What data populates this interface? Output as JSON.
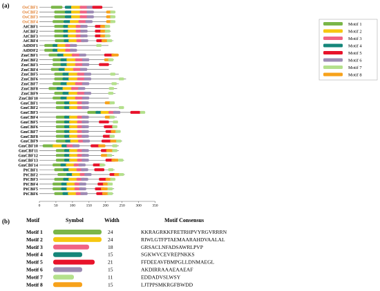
{
  "panel_a_label": "(a)",
  "panel_b_label": "(b)",
  "axis_ticks": [
    "0",
    "50",
    "100",
    "150",
    "200",
    "250",
    "300",
    "350"
  ],
  "motifs": [
    {
      "name": "Motif 1",
      "color": "#7ab648",
      "width": "24",
      "consensus": "KKRAGRKKFRETRHPVYRGVRRRN"
    },
    {
      "name": "Motif 2",
      "color": "#f6c710",
      "width": "24",
      "consensus": "RIWLGTFPTAEMAARAHDVAALAL"
    },
    {
      "name": "Motif 3",
      "color": "#f06384",
      "width": "18",
      "consensus": "GRSACLNFADSAWRLPVP"
    },
    {
      "name": "Motif 4",
      "color": "#15867a",
      "width": "15",
      "consensus": "SGKWVCEVREPNKKS"
    },
    {
      "name": "Motif 5",
      "color": "#e8132b",
      "width": "21",
      "consensus": "FFDEEAVFBMPGLLDNMAEGL"
    },
    {
      "name": "Motif 6",
      "color": "#9d8bb4",
      "width": "15",
      "consensus": "AKDIRRAAAEAAEAF"
    },
    {
      "name": "Motif 7",
      "color": "#b4e08c",
      "width": "11",
      "consensus": "EDDADVSLWSY"
    },
    {
      "name": "Motif 8",
      "color": "#f7a21b",
      "width": "15",
      "consensus": "LJTPPSMKRGFBWDD"
    }
  ],
  "table_headers": {
    "motif": "Motif",
    "symbol": "Symbol",
    "width": "Width",
    "consensus": "Motif Consensus"
  },
  "genes": [
    {
      "name": "OsCBF1",
      "orange": true,
      "len": 222,
      "m": [
        [
          1,
          35
        ],
        [
          4,
          77
        ],
        [
          2,
          96
        ],
        [
          3,
          122
        ],
        [
          6,
          143
        ],
        [
          5,
          160
        ]
      ]
    },
    {
      "name": "OsCBF2",
      "orange": true,
      "len": 230,
      "m": [
        [
          1,
          45
        ],
        [
          4,
          77
        ],
        [
          2,
          96
        ],
        [
          3,
          122
        ],
        [
          6,
          143
        ],
        [
          8,
          202
        ],
        [
          7,
          214
        ]
      ]
    },
    {
      "name": "OsCBF3",
      "orange": true,
      "len": 230,
      "m": [
        [
          1,
          45
        ],
        [
          4,
          77
        ],
        [
          2,
          96
        ],
        [
          3,
          122
        ],
        [
          6,
          143
        ],
        [
          8,
          202
        ],
        [
          7,
          214
        ]
      ]
    },
    {
      "name": "OsCBF4",
      "orange": true,
      "len": 222,
      "m": [
        [
          1,
          40
        ],
        [
          4,
          73
        ],
        [
          2,
          92
        ],
        [
          3,
          118
        ],
        [
          6,
          139
        ],
        [
          8,
          202
        ],
        [
          7,
          214
        ]
      ]
    },
    {
      "name": "AtCBF1",
      "orange": false,
      "len": 213,
      "m": [
        [
          1,
          45
        ],
        [
          4,
          72
        ],
        [
          2,
          86
        ],
        [
          3,
          110
        ],
        [
          6,
          124
        ],
        [
          5,
          168
        ],
        [
          8,
          184
        ],
        [
          7,
          198
        ]
      ]
    },
    {
      "name": "AtCBF2",
      "orange": false,
      "len": 216,
      "m": [
        [
          1,
          45
        ],
        [
          4,
          72
        ],
        [
          2,
          86
        ],
        [
          3,
          110
        ],
        [
          6,
          124
        ],
        [
          5,
          168
        ],
        [
          8,
          184
        ],
        [
          7,
          198
        ]
      ]
    },
    {
      "name": "AtCBF3",
      "orange": false,
      "len": 216,
      "m": [
        [
          1,
          45
        ],
        [
          4,
          72
        ],
        [
          2,
          86
        ],
        [
          3,
          110
        ],
        [
          6,
          124
        ],
        [
          5,
          168
        ],
        [
          8,
          184
        ],
        [
          7,
          198
        ]
      ]
    },
    {
      "name": "AtCBF4",
      "orange": false,
      "len": 224,
      "m": [
        [
          1,
          47
        ],
        [
          4,
          74
        ],
        [
          2,
          88
        ],
        [
          3,
          112
        ],
        [
          6,
          126
        ],
        [
          5,
          172
        ],
        [
          8,
          188
        ],
        [
          7,
          204
        ]
      ]
    },
    {
      "name": "AtDDF1",
      "orange": false,
      "len": 209,
      "m": [
        [
          1,
          15
        ],
        [
          4,
          40
        ],
        [
          2,
          54
        ],
        [
          3,
          78
        ],
        [
          6,
          92
        ],
        [
          7,
          172
        ]
      ]
    },
    {
      "name": "AtDDF2",
      "orange": false,
      "len": 186,
      "m": [
        [
          1,
          15
        ],
        [
          4,
          40
        ],
        [
          2,
          54
        ],
        [
          3,
          78
        ],
        [
          6,
          92
        ]
      ]
    },
    {
      "name": "ZmCBF1",
      "orange": false,
      "len": 240,
      "m": [
        [
          1,
          28
        ],
        [
          4,
          54
        ],
        [
          2,
          72
        ],
        [
          3,
          98
        ],
        [
          6,
          120
        ],
        [
          5,
          196
        ],
        [
          8,
          218
        ]
      ]
    },
    {
      "name": "ZmCBF2",
      "orange": false,
      "len": 225,
      "m": [
        [
          1,
          40
        ],
        [
          4,
          64
        ],
        [
          2,
          82
        ],
        [
          3,
          108
        ],
        [
          6,
          129
        ],
        [
          8,
          196
        ],
        [
          7,
          208
        ]
      ]
    },
    {
      "name": "ZmCBF3",
      "orange": false,
      "len": 218,
      "m": [
        [
          1,
          40
        ],
        [
          4,
          64
        ],
        [
          2,
          82
        ],
        [
          3,
          108
        ],
        [
          6,
          129
        ],
        [
          5,
          180
        ]
      ]
    },
    {
      "name": "ZmCBF4",
      "orange": false,
      "len": 210,
      "m": [
        [
          1,
          35
        ],
        [
          4,
          58
        ],
        [
          2,
          76
        ],
        [
          3,
          102
        ],
        [
          6,
          123
        ]
      ]
    },
    {
      "name": "ZmCBF5",
      "orange": false,
      "len": 240,
      "m": [
        [
          1,
          45
        ],
        [
          4,
          70
        ],
        [
          2,
          88
        ],
        [
          3,
          114
        ],
        [
          6,
          135
        ],
        [
          7,
          214
        ]
      ]
    },
    {
      "name": "ZmCBF6",
      "orange": false,
      "len": 262,
      "m": [
        [
          1,
          45
        ],
        [
          4,
          70
        ],
        [
          2,
          88
        ],
        [
          3,
          114
        ],
        [
          6,
          135
        ],
        [
          7,
          240
        ]
      ]
    },
    {
      "name": "ZmCBF7",
      "orange": false,
      "len": 240,
      "m": [
        [
          1,
          40
        ],
        [
          4,
          64
        ],
        [
          2,
          82
        ],
        [
          3,
          108
        ],
        [
          6,
          129
        ],
        [
          7,
          218
        ]
      ]
    },
    {
      "name": "ZmCBF8",
      "orange": false,
      "len": 235,
      "m": [
        [
          1,
          28
        ],
        [
          4,
          52
        ],
        [
          2,
          70
        ],
        [
          3,
          96
        ],
        [
          6,
          117
        ],
        [
          7,
          210
        ]
      ]
    },
    {
      "name": "ZmCBF9",
      "orange": false,
      "len": 230,
      "m": [
        [
          1,
          45
        ],
        [
          4,
          70
        ],
        [
          2,
          88
        ],
        [
          3,
          114
        ],
        [
          6,
          135
        ],
        [
          7,
          208
        ]
      ]
    },
    {
      "name": "ZmCBF10",
      "orange": false,
      "len": 210,
      "m": [
        [
          1,
          40
        ],
        [
          4,
          64
        ],
        [
          2,
          82
        ],
        [
          3,
          108
        ],
        [
          6,
          129
        ]
      ]
    },
    {
      "name": "GmCBF1",
      "orange": false,
      "len": 222,
      "m": [
        [
          1,
          50
        ],
        [
          4,
          75
        ],
        [
          2,
          90
        ],
        [
          3,
          114
        ],
        [
          6,
          128
        ],
        [
          8,
          198
        ],
        [
          7,
          212
        ]
      ]
    },
    {
      "name": "GmCBF2",
      "orange": false,
      "len": 250,
      "m": [
        [
          1,
          50
        ],
        [
          4,
          75
        ],
        [
          2,
          90
        ],
        [
          3,
          114
        ],
        [
          6,
          128
        ],
        [
          7,
          240
        ]
      ]
    },
    {
      "name": "GmCBF3",
      "orange": false,
      "len": 320,
      "m": [
        [
          1,
          145
        ],
        [
          4,
          170
        ],
        [
          2,
          185
        ],
        [
          3,
          209
        ],
        [
          6,
          223
        ],
        [
          5,
          275
        ],
        [
          7,
          304
        ]
      ]
    },
    {
      "name": "GmCBF4",
      "orange": false,
      "len": 234,
      "m": [
        [
          1,
          50
        ],
        [
          4,
          75
        ],
        [
          2,
          90
        ],
        [
          3,
          114
        ],
        [
          6,
          128
        ],
        [
          8,
          198
        ],
        [
          7,
          212
        ]
      ]
    },
    {
      "name": "GmCBF5",
      "orange": false,
      "len": 236,
      "m": [
        [
          1,
          50
        ],
        [
          4,
          75
        ],
        [
          2,
          90
        ],
        [
          3,
          114
        ],
        [
          6,
          128
        ],
        [
          5,
          180
        ],
        [
          7,
          222
        ]
      ]
    },
    {
      "name": "GmCBF6",
      "orange": false,
      "len": 232,
      "m": [
        [
          1,
          50
        ],
        [
          4,
          75
        ],
        [
          2,
          90
        ],
        [
          3,
          114
        ],
        [
          6,
          128
        ],
        [
          5,
          195
        ],
        [
          7,
          220
        ]
      ]
    },
    {
      "name": "GmCBF7",
      "orange": false,
      "len": 244,
      "m": [
        [
          1,
          50
        ],
        [
          4,
          75
        ],
        [
          2,
          90
        ],
        [
          3,
          114
        ],
        [
          6,
          128
        ],
        [
          5,
          200
        ],
        [
          8,
          216
        ],
        [
          7,
          230
        ]
      ]
    },
    {
      "name": "GmCBF8",
      "orange": false,
      "len": 226,
      "m": [
        [
          1,
          50
        ],
        [
          4,
          75
        ],
        [
          2,
          90
        ],
        [
          3,
          114
        ],
        [
          6,
          128
        ],
        [
          5,
          192
        ],
        [
          7,
          212
        ]
      ]
    },
    {
      "name": "GmCBF9",
      "orange": false,
      "len": 250,
      "m": [
        [
          1,
          50
        ],
        [
          4,
          78
        ],
        [
          2,
          93
        ],
        [
          3,
          117
        ],
        [
          6,
          131
        ],
        [
          5,
          188
        ],
        [
          8,
          214
        ],
        [
          7,
          232
        ]
      ]
    },
    {
      "name": "GmCBF10",
      "orange": false,
      "len": 240,
      "m": [
        [
          1,
          10
        ],
        [
          2,
          40
        ],
        [
          4,
          67
        ],
        [
          3,
          82
        ],
        [
          6,
          100
        ],
        [
          5,
          155
        ],
        [
          8,
          178
        ],
        [
          7,
          220
        ]
      ]
    },
    {
      "name": "GmCBF11",
      "orange": false,
      "len": 240,
      "m": [
        [
          1,
          50
        ],
        [
          4,
          75
        ],
        [
          2,
          90
        ],
        [
          3,
          114
        ],
        [
          6,
          128
        ],
        [
          5,
          186
        ],
        [
          8,
          202
        ],
        [
          7,
          220
        ]
      ]
    },
    {
      "name": "GmCBF12",
      "orange": false,
      "len": 226,
      "m": [
        [
          1,
          50
        ],
        [
          4,
          75
        ],
        [
          2,
          90
        ],
        [
          3,
          114
        ],
        [
          6,
          128
        ],
        [
          8,
          186
        ],
        [
          7,
          204
        ]
      ]
    },
    {
      "name": "GmCBF13",
      "orange": false,
      "len": 256,
      "m": [
        [
          1,
          50
        ],
        [
          4,
          75
        ],
        [
          2,
          90
        ],
        [
          3,
          114
        ],
        [
          6,
          128
        ],
        [
          5,
          200
        ],
        [
          8,
          218
        ],
        [
          7,
          238
        ]
      ]
    },
    {
      "name": "GmCBF14",
      "orange": false,
      "len": 200,
      "m": [
        [
          1,
          40
        ],
        [
          4,
          64
        ],
        [
          2,
          80
        ],
        [
          3,
          104
        ],
        [
          6,
          118
        ],
        [
          5,
          162
        ],
        [
          7,
          182
        ]
      ]
    },
    {
      "name": "PtCBF1",
      "orange": false,
      "len": 228,
      "m": [
        [
          1,
          45
        ],
        [
          4,
          72
        ],
        [
          2,
          88
        ],
        [
          3,
          112
        ],
        [
          6,
          126
        ],
        [
          5,
          166
        ],
        [
          7,
          208
        ]
      ]
    },
    {
      "name": "PtCBF2",
      "orange": false,
      "len": 258,
      "m": [
        [
          1,
          55
        ],
        [
          4,
          82
        ],
        [
          2,
          98
        ],
        [
          3,
          122
        ],
        [
          6,
          136
        ],
        [
          5,
          212
        ],
        [
          8,
          226
        ],
        [
          7,
          240
        ]
      ]
    },
    {
      "name": "PtCBF3",
      "orange": false,
      "len": 230,
      "m": [
        [
          1,
          45
        ],
        [
          4,
          72
        ],
        [
          2,
          88
        ],
        [
          3,
          112
        ],
        [
          6,
          126
        ],
        [
          5,
          180
        ],
        [
          8,
          200
        ],
        [
          7,
          214
        ]
      ]
    },
    {
      "name": "PtCBF4",
      "orange": false,
      "len": 220,
      "m": [
        [
          1,
          40
        ],
        [
          4,
          66
        ],
        [
          2,
          82
        ],
        [
          3,
          106
        ],
        [
          6,
          120
        ],
        [
          5,
          176
        ],
        [
          8,
          192
        ],
        [
          7,
          206
        ]
      ]
    },
    {
      "name": "PtCBF5",
      "orange": false,
      "len": 226,
      "m": [
        [
          1,
          40
        ],
        [
          4,
          66
        ],
        [
          2,
          82
        ],
        [
          3,
          106
        ],
        [
          6,
          120
        ],
        [
          5,
          168
        ],
        [
          8,
          186
        ],
        [
          7,
          206
        ]
      ]
    },
    {
      "name": "PtCBF6",
      "orange": false,
      "len": 224,
      "m": [
        [
          1,
          45
        ],
        [
          4,
          70
        ],
        [
          2,
          86
        ],
        [
          3,
          110
        ],
        [
          6,
          124
        ],
        [
          5,
          172
        ],
        [
          8,
          190
        ],
        [
          7,
          206
        ]
      ]
    }
  ]
}
